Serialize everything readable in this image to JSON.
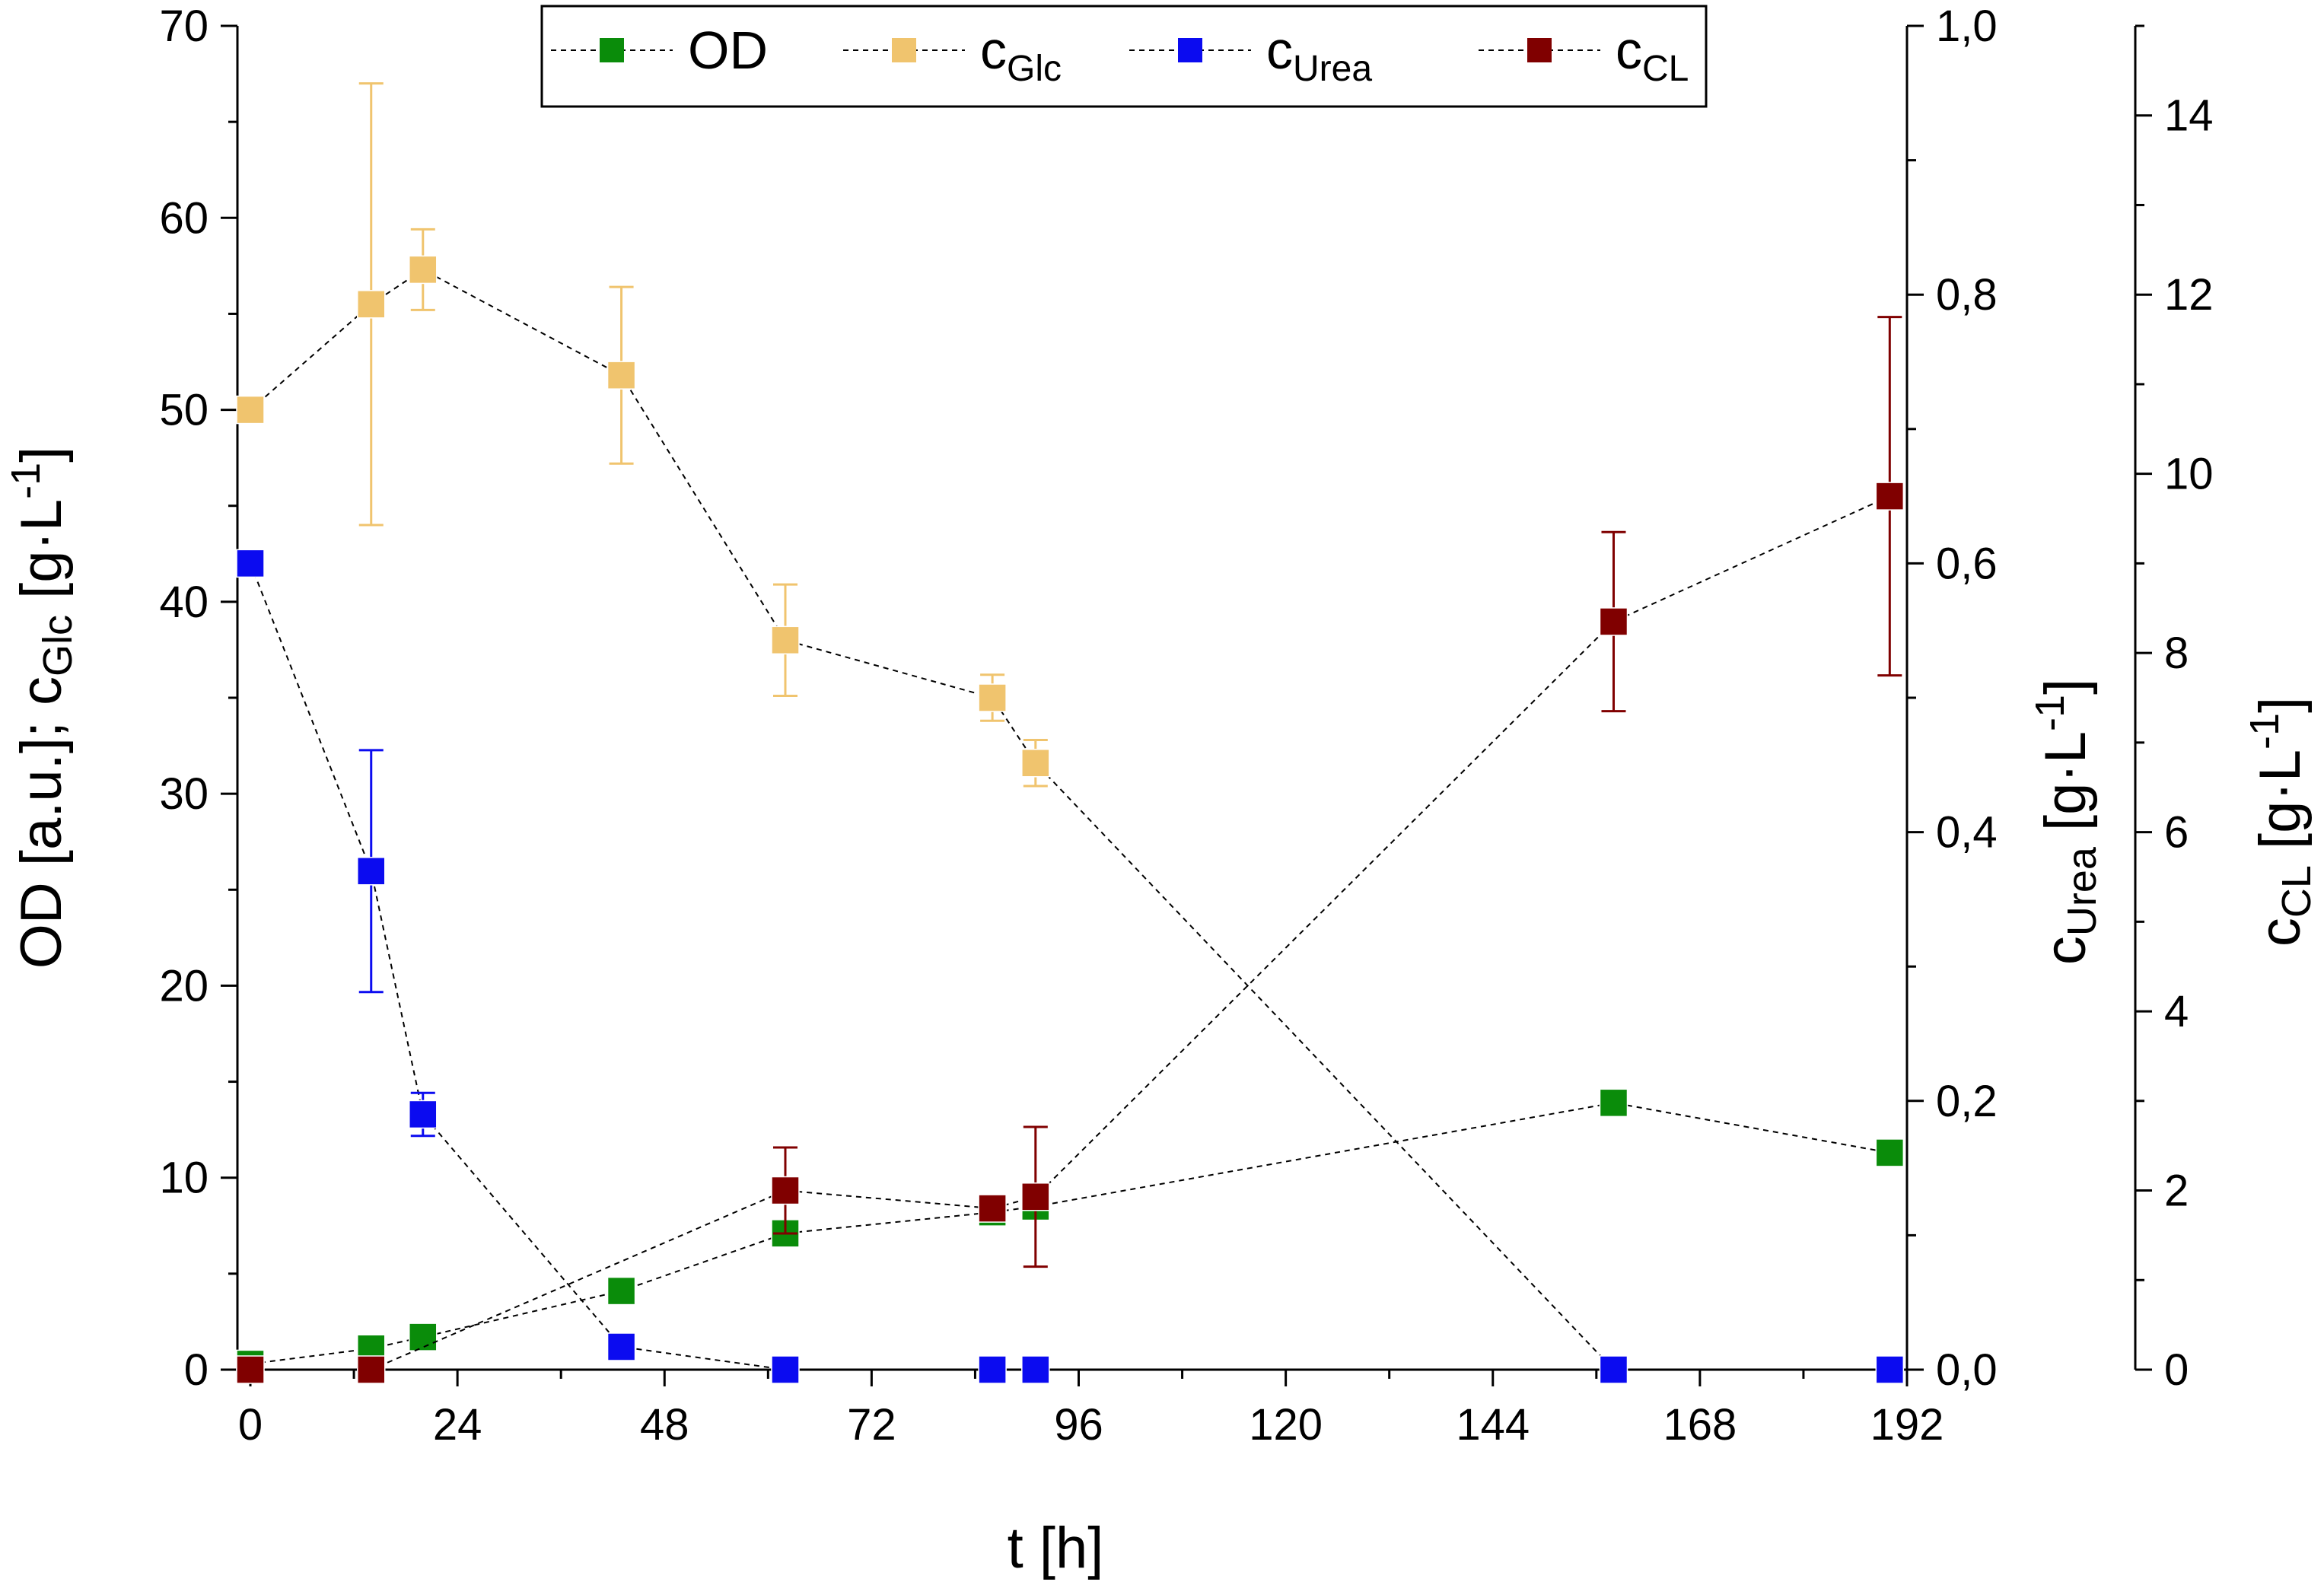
{
  "chart_data": {
    "type": "scatter",
    "x": {
      "label": "t [h]",
      "range": [
        -1.5,
        192
      ],
      "ticks": [
        0,
        24,
        48,
        72,
        96,
        120,
        144,
        168,
        192
      ]
    },
    "y_left": {
      "label_main": "OD [a.u.]; c",
      "label_sub": "Glc",
      "label_unit": " [g·L",
      "label_sup": "-1",
      "label_end": "]",
      "range": [
        0,
        70
      ],
      "ticks": [
        0,
        10,
        20,
        30,
        40,
        50,
        60,
        70
      ]
    },
    "y_urea": {
      "label_main": "c",
      "label_sub": "Urea",
      "label_unit": " [g·L",
      "label_sup": "-1",
      "label_end": "]",
      "range": [
        0,
        1.0
      ],
      "ticks": [
        0,
        0.2,
        0.4,
        0.6,
        0.8,
        1.0
      ],
      "tick_labels": [
        "0,0",
        "0,2",
        "0,4",
        "0,6",
        "0,8",
        "1,0"
      ]
    },
    "y_cl": {
      "label_main": "c",
      "label_sub": "CL",
      "label_unit": " [g·L",
      "label_sup": "-1",
      "label_end": "]",
      "range": [
        0,
        15
      ],
      "ticks": [
        0,
        2,
        4,
        6,
        8,
        10,
        12,
        14
      ],
      "tick_labels": [
        "0",
        "2",
        "4",
        "6",
        "8",
        "10",
        "12",
        "14"
      ]
    },
    "legend": {
      "position": "top-center",
      "entries": [
        {
          "name": "OD",
          "main": "OD",
          "sub": ""
        },
        {
          "name": "c_Glc",
          "main": "c",
          "sub": "Glc"
        },
        {
          "name": "c_Urea",
          "main": "c",
          "sub": "Urea"
        },
        {
          "name": "c_CL",
          "main": "c",
          "sub": "CL"
        }
      ]
    },
    "series": [
      {
        "name": "OD",
        "axis": "left",
        "color": "#0a8c0a",
        "x": [
          0,
          14,
          20,
          43,
          62,
          86,
          91,
          158,
          190
        ],
        "y": [
          0.3,
          1.1,
          1.7,
          4.1,
          7.1,
          8.2,
          8.5,
          13.9,
          11.3
        ],
        "err": [
          0,
          0,
          0,
          0,
          0,
          0,
          0,
          0,
          0
        ]
      },
      {
        "name": "c_Glc",
        "axis": "left",
        "color": "#f0c46e",
        "x": [
          0,
          14,
          20,
          43,
          62,
          86,
          91,
          158,
          190
        ],
        "y": [
          50,
          55.5,
          57.3,
          51.8,
          38,
          35,
          31.6,
          0,
          0
        ],
        "err": [
          0,
          11.5,
          2.1,
          4.6,
          2.9,
          1.2,
          1.2,
          0,
          0
        ]
      },
      {
        "name": "c_Urea",
        "axis": "urea",
        "color": "#0b0bf0",
        "x": [
          0,
          14,
          20,
          43,
          62,
          86,
          91,
          158,
          190
        ],
        "y": [
          0.6,
          0.371,
          0.19,
          0.017,
          0,
          0,
          0,
          0,
          0
        ],
        "err": [
          0,
          0.09,
          0.016,
          0,
          0,
          0,
          0,
          0,
          0
        ]
      },
      {
        "name": "c_CL",
        "axis": "cl",
        "color": "#800000",
        "x": [
          0,
          14,
          62,
          86,
          91,
          158,
          190
        ],
        "y": [
          0,
          0,
          2.0,
          1.8,
          1.93,
          8.35,
          9.75
        ],
        "err": [
          0,
          0,
          0.48,
          0.12,
          0.78,
          1.0,
          2.0
        ]
      }
    ]
  }
}
